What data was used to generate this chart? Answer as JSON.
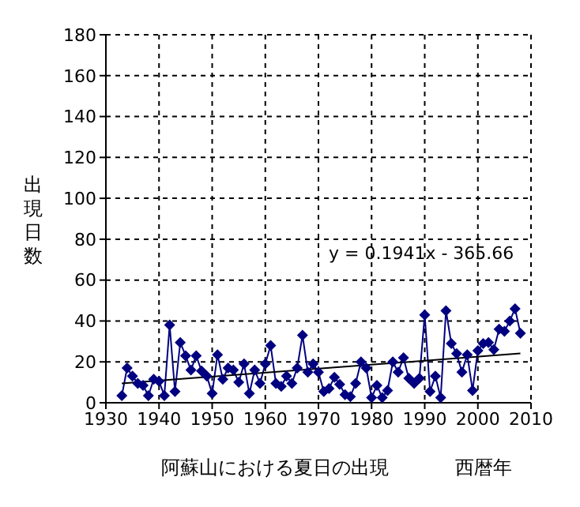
{
  "chart_data": {
    "type": "line",
    "title": "阿蘇山における夏日の出現",
    "xlabel": "西暦年",
    "ylabel": "出現日数",
    "annotations": [
      "y = 0.1941x - 365.66"
    ],
    "xlim": [
      1930,
      2010
    ],
    "xticks": [
      1930,
      1940,
      1950,
      1960,
      1970,
      1980,
      1990,
      2000,
      2010
    ],
    "ylim": [
      0,
      180
    ],
    "yticks": [
      0,
      20,
      40,
      60,
      80,
      100,
      120,
      140,
      160,
      180
    ],
    "grid": true,
    "series": [
      {
        "marker": "diamond",
        "color": "#000080",
        "x": [
          1933,
          1934,
          1935,
          1936,
          1937,
          1938,
          1939,
          1940,
          1941,
          1942,
          1943,
          1944,
          1945,
          1946,
          1947,
          1948,
          1949,
          1950,
          1951,
          1952,
          1953,
          1954,
          1955,
          1956,
          1957,
          1958,
          1959,
          1960,
          1961,
          1962,
          1963,
          1964,
          1965,
          1966,
          1967,
          1968,
          1969,
          1970,
          1971,
          1972,
          1973,
          1974,
          1975,
          1976,
          1977,
          1978,
          1979,
          1980,
          1981,
          1982,
          1983,
          1984,
          1985,
          1986,
          1987,
          1988,
          1989,
          1990,
          1991,
          1992,
          1993,
          1994,
          1995,
          1996,
          1997,
          1998,
          1999,
          2000,
          2001,
          2002,
          2003,
          2004,
          2005,
          2006,
          2007,
          2008
        ],
        "values": [
          3.5,
          17,
          13,
          9.5,
          8.5,
          3.5,
          11.5,
          10.5,
          3.5,
          38,
          5.5,
          29.5,
          23,
          16,
          23,
          15.5,
          13,
          4.5,
          23.5,
          11.5,
          17,
          16,
          10,
          19,
          4.5,
          16,
          9.5,
          19,
          28,
          9.5,
          8,
          13,
          9.5,
          17,
          33,
          15,
          19,
          15,
          5.5,
          7,
          12.5,
          9,
          4,
          3,
          9.5,
          20,
          17,
          2.5,
          8.5,
          2.5,
          6,
          20,
          15,
          22,
          12,
          9.5,
          12,
          43,
          5.5,
          13,
          2.5,
          45,
          29,
          24,
          15,
          23.5,
          6,
          25.5,
          29,
          29.5,
          26,
          36,
          35,
          40,
          46,
          34
        ]
      },
      {
        "marker": "none",
        "color": "#000000",
        "x": [
          1933,
          2008
        ],
        "values": [
          9.5,
          24.1
        ]
      }
    ]
  }
}
